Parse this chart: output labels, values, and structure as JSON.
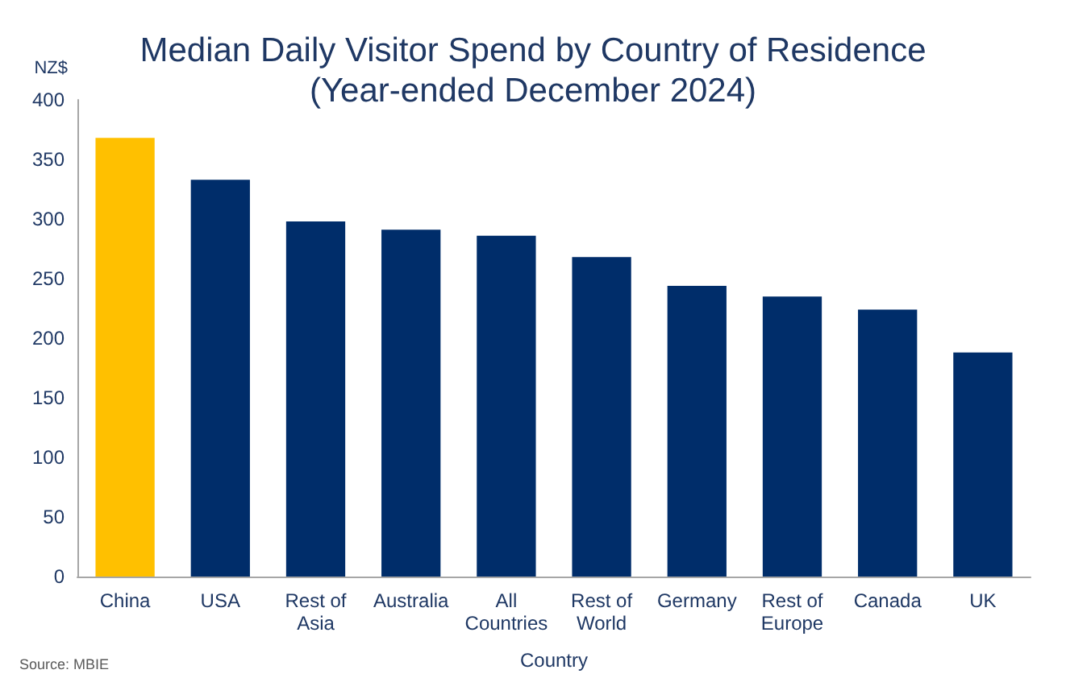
{
  "chart_data": {
    "type": "bar",
    "title": "Median Daily Visitor Spend by Country of Residence\n(Year-ended December 2024)",
    "ylabel": "NZ$",
    "xlabel": "Country",
    "categories": [
      "China",
      "USA",
      "Rest of\nAsia",
      "Australia",
      "All\nCountries",
      "Rest of\nWorld",
      "Germany",
      "Rest of\nEurope",
      "Canada",
      "UK"
    ],
    "values": [
      368,
      333,
      298,
      291,
      286,
      268,
      244,
      235,
      224,
      188
    ],
    "colors": [
      "#ffc000",
      "#002d6a",
      "#002d6a",
      "#002d6a",
      "#002d6a",
      "#002d6a",
      "#002d6a",
      "#002d6a",
      "#002d6a",
      "#002d6a"
    ],
    "ylim": [
      0,
      400
    ],
    "yticks": [
      0,
      50,
      100,
      150,
      200,
      250,
      300,
      350,
      400
    ],
    "grid": false,
    "annotations": [
      "Source: MBIE"
    ]
  }
}
